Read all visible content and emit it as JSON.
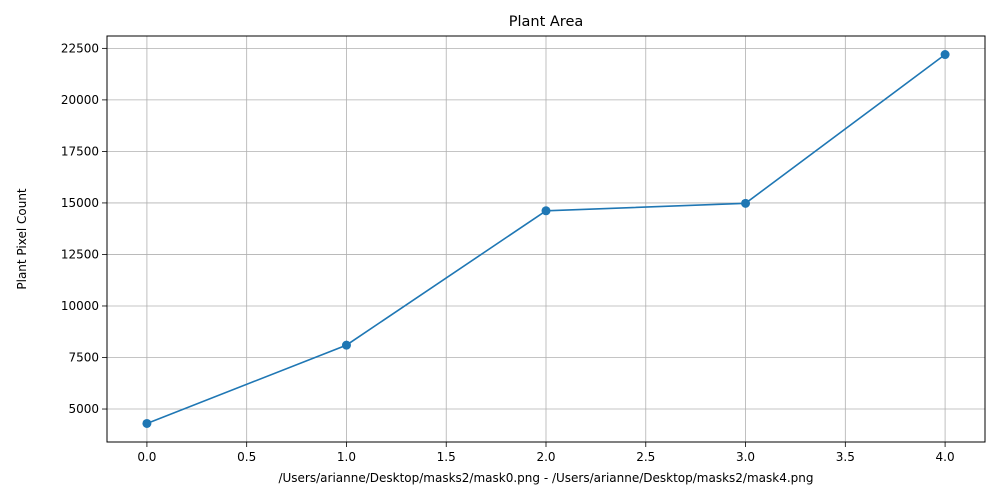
{
  "chart_data": {
    "type": "line",
    "title": "Plant Area",
    "xlabel": "/Users/arianne/Desktop/masks2/mask0.png - /Users/arianne/Desktop/masks2/mask4.png",
    "ylabel": "Plant Pixel Count",
    "xlim": [
      -0.2,
      4.2
    ],
    "ylim": [
      3400,
      23100
    ],
    "x_ticks": [
      0.0,
      0.5,
      1.0,
      1.5,
      2.0,
      2.5,
      3.0,
      3.5,
      4.0
    ],
    "x_tick_labels": [
      "0.0",
      "0.5",
      "1.0",
      "1.5",
      "2.0",
      "2.5",
      "3.0",
      "3.5",
      "4.0"
    ],
    "y_ticks": [
      5000,
      7500,
      10000,
      12500,
      15000,
      17500,
      20000,
      22500
    ],
    "y_tick_labels": [
      "5000",
      "7500",
      "10000",
      "12500",
      "15000",
      "17500",
      "20000",
      "22500"
    ],
    "grid": true,
    "marker": "circle",
    "series": [
      {
        "x": [
          0,
          1,
          2,
          3,
          4
        ],
        "values": [
          4300,
          8100,
          14620,
          14980,
          22200
        ],
        "color": "#1f77b4"
      }
    ]
  }
}
